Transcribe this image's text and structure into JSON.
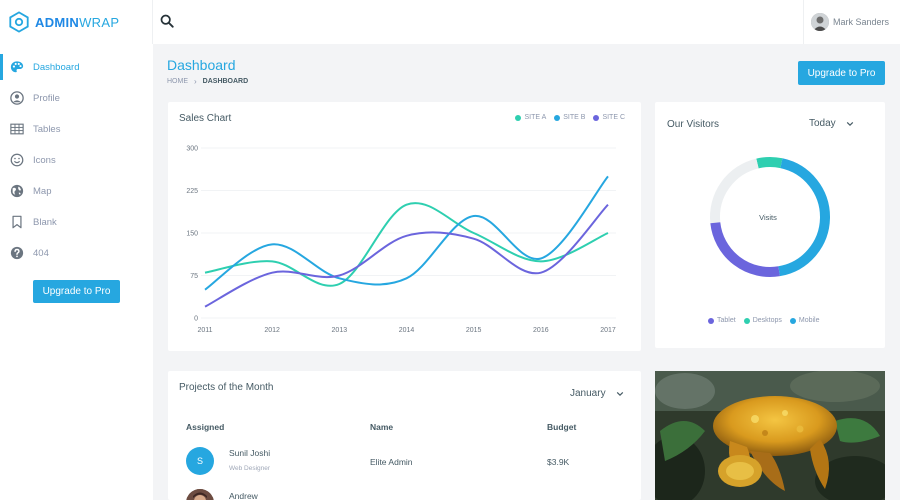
{
  "brand": {
    "bold": "ADMIN",
    "light": "WRAP"
  },
  "topbar": {
    "user_name": "Mark Sanders"
  },
  "sidebar": {
    "items": [
      {
        "label": "Dashboard",
        "icon": "palette-icon",
        "active": true
      },
      {
        "label": "Profile",
        "icon": "user-circle-icon"
      },
      {
        "label": "Tables",
        "icon": "table-icon"
      },
      {
        "label": "Icons",
        "icon": "smile-icon"
      },
      {
        "label": "Map",
        "icon": "globe-icon"
      },
      {
        "label": "Blank",
        "icon": "bookmark-icon"
      },
      {
        "label": "404",
        "icon": "help-circle-icon"
      }
    ],
    "upgrade_label": "Upgrade to Pro"
  },
  "header": {
    "title": "Dashboard",
    "breadcrumb": [
      "HOME",
      "DASHBOARD"
    ],
    "upgrade_label": "Upgrade to Pro"
  },
  "sales": {
    "title": "Sales Chart",
    "colors": {
      "site_a": "#2ecfb0",
      "site_b": "#26a7e0",
      "site_c": "#6b65dd"
    }
  },
  "chart_data": {
    "type": "line",
    "title": "Sales Chart",
    "x": [
      "2011",
      "2012",
      "2013",
      "2014",
      "2015",
      "2016",
      "2017"
    ],
    "ylim": [
      0,
      300
    ],
    "yticks": [
      0,
      75,
      150,
      225,
      300
    ],
    "grid": true,
    "legend": "top-right",
    "series": [
      {
        "name": "SITE A",
        "values": [
          80,
          100,
          60,
          200,
          150,
          100,
          150
        ]
      },
      {
        "name": "SITE B",
        "values": [
          50,
          130,
          70,
          70,
          180,
          105,
          250
        ]
      },
      {
        "name": "SITE C",
        "values": [
          20,
          80,
          75,
          145,
          140,
          80,
          200
        ]
      }
    ]
  },
  "visitors": {
    "title": "Our Visitors",
    "period": "Today",
    "center_label": "Visits",
    "legend": [
      "Tablet",
      "Desktops",
      "Mobile"
    ],
    "donut": [
      {
        "label": "Mobile",
        "value": 44,
        "color": "#26a7e0"
      },
      {
        "label": "Tablet",
        "value": 26,
        "color": "#6b65dd"
      },
      {
        "label": "Other",
        "value": 23,
        "color": "#eceff1"
      },
      {
        "label": "Desktops",
        "value": 7,
        "color": "#2ecfb0"
      }
    ]
  },
  "projects": {
    "title": "Projects of the Month",
    "month": "January",
    "columns": [
      "Assigned",
      "Name",
      "Budget"
    ],
    "rows": [
      {
        "initial": "S",
        "assignee": "Sunil Joshi",
        "role": "Web Designer",
        "name": "Elite Admin",
        "budget": "$3.9K"
      },
      {
        "assignee": "Andrew"
      }
    ]
  }
}
